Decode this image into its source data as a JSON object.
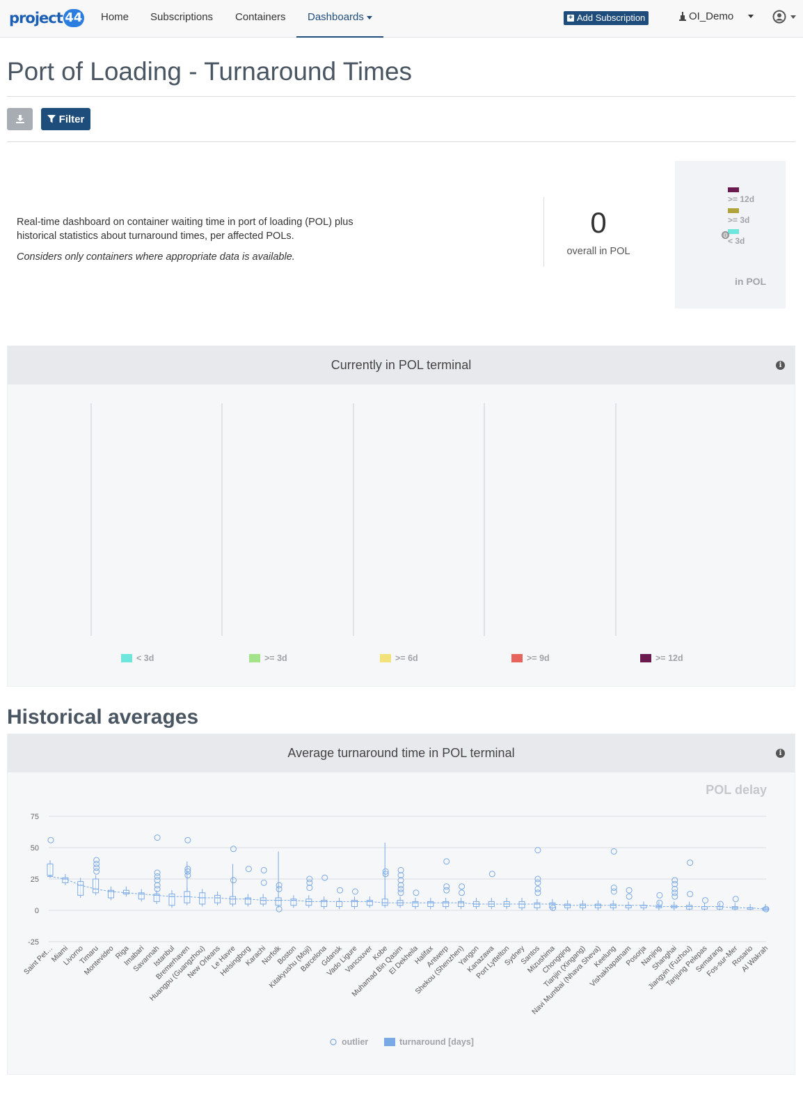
{
  "nav": {
    "logo_text": "project",
    "logo_badge": "44",
    "items": [
      {
        "label": "Home"
      },
      {
        "label": "Subscriptions"
      },
      {
        "label": "Containers"
      },
      {
        "label": "Dashboards"
      }
    ],
    "add_subscription": "Add Subscription",
    "org": "OI_Demo"
  },
  "page": {
    "title": "Port of Loading - Turnaround Times",
    "filter_label": "Filter"
  },
  "intro": {
    "text": "Real-time dashboard on container waiting time in port of loading (POL) plus historical statistics about turnaround times, per affected POLs.",
    "note": "Considers only containers where appropriate data is available.",
    "count": "0",
    "count_label": "overall in POL"
  },
  "mini_chart": {
    "legend": [
      {
        "label": ">= 12d",
        "color": "#6b1a50"
      },
      {
        "label": ">= 3d",
        "color": "#b2a23c"
      },
      {
        "label": "< 3d",
        "color": "#6ee6dc"
      }
    ],
    "value": "0",
    "subtitle": "in POL"
  },
  "current_panel": {
    "title": "Currently in POL terminal",
    "legend": [
      {
        "label": "< 3d",
        "color": "#6ee6dc"
      },
      {
        "label": ">= 3d",
        "color": "#a3e48a"
      },
      {
        "label": ">= 6d",
        "color": "#f3e27a"
      },
      {
        "label": ">= 9d",
        "color": "#e6645c"
      },
      {
        "label": ">= 12d",
        "color": "#6b1a50"
      }
    ]
  },
  "historical": {
    "heading": "Historical averages",
    "panel_title": "Average turnaround time in POL terminal",
    "chart_title": "POL delay"
  },
  "chart_data": {
    "type": "boxplot",
    "title": "POL delay",
    "yticks": [
      75,
      50,
      25,
      0,
      -25
    ],
    "ylim": [
      -25,
      75
    ],
    "legend": [
      "outlier",
      "turnaround [days]"
    ],
    "series_color": "#7aa9e6",
    "categories": [
      "Saint Pet…",
      "Miami",
      "Livorno",
      "Timaru",
      "Montevideo",
      "Riga",
      "Imabari",
      "Savannah",
      "Istanbul",
      "Bremerhaven",
      "Huangpu (Guangzhou)",
      "New Orleans",
      "Le Havre",
      "Helsingborg",
      "Karachi",
      "Norfolk",
      "Boston",
      "Kitakyushu (Moji)",
      "Barcelona",
      "Gdansk",
      "Vado Ligure",
      "Vancouver",
      "Kobe",
      "Muhamad Bin Qasim",
      "El Dekheila",
      "Halifax",
      "Antwerp",
      "Shekou (Shenzhen)",
      "Yangon",
      "Kanazawa",
      "Port Lyttelton",
      "Sydney",
      "Santos",
      "Mizushima",
      "Chongqing",
      "Tianjin (Xingang)",
      "Navi Mumbai (Nhava Sheva)",
      "Keelung",
      "Vishakhapatnam",
      "Posorja",
      "Nanjing",
      "Shanghai",
      "Jiangyin (Fuzhou)",
      "Tanjung Pelepas",
      "Semarang",
      "Fos-sur-Mer",
      "Rosario",
      "Al Wakrah"
    ],
    "boxes": [
      [
        28,
        30,
        33,
        37
      ],
      [
        22,
        24,
        25,
        26
      ],
      [
        12,
        15,
        19,
        23
      ],
      [
        14,
        17,
        20,
        25
      ],
      [
        10,
        12,
        14,
        16
      ],
      [
        13,
        14,
        15,
        16
      ],
      [
        9,
        11,
        12,
        14
      ],
      [
        7,
        10,
        12,
        13
      ],
      [
        4,
        8,
        10,
        13
      ],
      [
        6,
        9,
        12,
        15
      ],
      [
        5,
        8,
        11,
        14
      ],
      [
        6,
        9,
        10,
        12
      ],
      [
        5,
        7,
        9,
        11
      ],
      [
        5,
        7,
        8,
        10
      ],
      [
        5,
        7,
        9,
        10
      ],
      [
        4,
        6,
        8,
        10
      ],
      [
        4,
        6,
        7,
        9
      ],
      [
        4,
        6,
        7,
        9
      ],
      [
        3,
        5,
        6,
        8
      ],
      [
        3,
        5,
        6,
        7
      ],
      [
        3,
        5,
        6,
        8
      ],
      [
        4,
        6,
        7,
        8
      ],
      [
        4,
        6,
        7,
        9
      ],
      [
        4,
        5,
        6,
        8
      ],
      [
        3,
        5,
        6,
        7
      ],
      [
        3,
        5,
        6,
        7
      ],
      [
        3,
        5,
        6,
        7
      ],
      [
        3,
        5,
        6,
        7
      ],
      [
        3,
        4,
        5,
        7
      ],
      [
        3,
        4,
        5,
        7
      ],
      [
        3,
        4,
        5,
        7
      ],
      [
        2,
        4,
        5,
        7
      ],
      [
        2,
        4,
        5,
        6
      ],
      [
        2,
        3,
        4,
        6
      ],
      [
        2,
        3,
        4,
        5
      ],
      [
        2,
        3,
        4,
        5
      ],
      [
        2,
        3,
        4,
        5
      ],
      [
        2,
        3,
        4,
        5
      ],
      [
        2,
        3,
        3,
        4
      ],
      [
        2,
        3,
        3,
        4
      ],
      [
        2,
        3,
        3,
        4
      ],
      [
        2,
        3,
        3,
        4
      ],
      [
        1,
        2,
        3,
        4
      ],
      [
        1,
        2,
        3,
        3
      ],
      [
        1,
        2,
        2,
        3
      ],
      [
        1,
        2,
        2,
        3
      ],
      [
        1,
        1,
        2,
        2
      ],
      [
        0,
        1,
        1,
        2
      ]
    ],
    "medians": [
      27,
      25,
      20,
      17,
      15,
      14,
      13,
      12,
      11,
      11,
      10,
      10,
      9,
      9,
      8,
      8,
      8,
      7,
      7,
      7,
      7,
      7,
      6,
      6,
      6,
      6,
      6,
      6,
      5,
      5,
      5,
      5,
      5,
      5,
      4,
      4,
      4,
      4,
      4,
      4,
      3,
      3,
      3,
      3,
      3,
      2,
      2,
      1
    ],
    "outliers": [
      [
        0,
        56
      ],
      [
        3,
        40
      ],
      [
        3,
        37
      ],
      [
        3,
        34
      ],
      [
        3,
        31
      ],
      [
        7,
        58
      ],
      [
        7,
        30
      ],
      [
        7,
        27
      ],
      [
        7,
        24
      ],
      [
        7,
        20
      ],
      [
        7,
        17
      ],
      [
        9,
        56
      ],
      [
        9,
        31
      ],
      [
        9,
        28
      ],
      [
        9,
        33
      ],
      [
        12,
        49
      ],
      [
        12,
        24
      ],
      [
        13,
        33
      ],
      [
        14,
        32
      ],
      [
        14,
        22
      ],
      [
        15,
        20
      ],
      [
        15,
        17
      ],
      [
        15,
        1
      ],
      [
        17,
        25
      ],
      [
        17,
        22
      ],
      [
        17,
        18
      ],
      [
        18,
        26
      ],
      [
        19,
        16
      ],
      [
        20,
        15
      ],
      [
        22,
        31
      ],
      [
        22,
        29
      ],
      [
        23,
        32
      ],
      [
        23,
        28
      ],
      [
        23,
        24
      ],
      [
        23,
        20
      ],
      [
        23,
        17
      ],
      [
        23,
        14
      ],
      [
        24,
        14
      ],
      [
        26,
        39
      ],
      [
        26,
        19
      ],
      [
        26,
        16
      ],
      [
        27,
        19
      ],
      [
        27,
        14
      ],
      [
        29,
        29
      ],
      [
        32,
        48
      ],
      [
        32,
        25
      ],
      [
        32,
        22
      ],
      [
        32,
        17
      ],
      [
        32,
        14
      ],
      [
        33,
        2
      ],
      [
        37,
        47
      ],
      [
        37,
        18
      ],
      [
        37,
        15
      ],
      [
        38,
        16
      ],
      [
        38,
        11
      ],
      [
        40,
        12
      ],
      [
        40,
        6
      ],
      [
        41,
        24
      ],
      [
        41,
        21
      ],
      [
        41,
        17
      ],
      [
        41,
        14
      ],
      [
        41,
        11
      ],
      [
        42,
        38
      ],
      [
        42,
        13
      ],
      [
        43,
        8
      ],
      [
        44,
        5
      ],
      [
        45,
        9
      ],
      [
        47,
        1
      ]
    ]
  }
}
